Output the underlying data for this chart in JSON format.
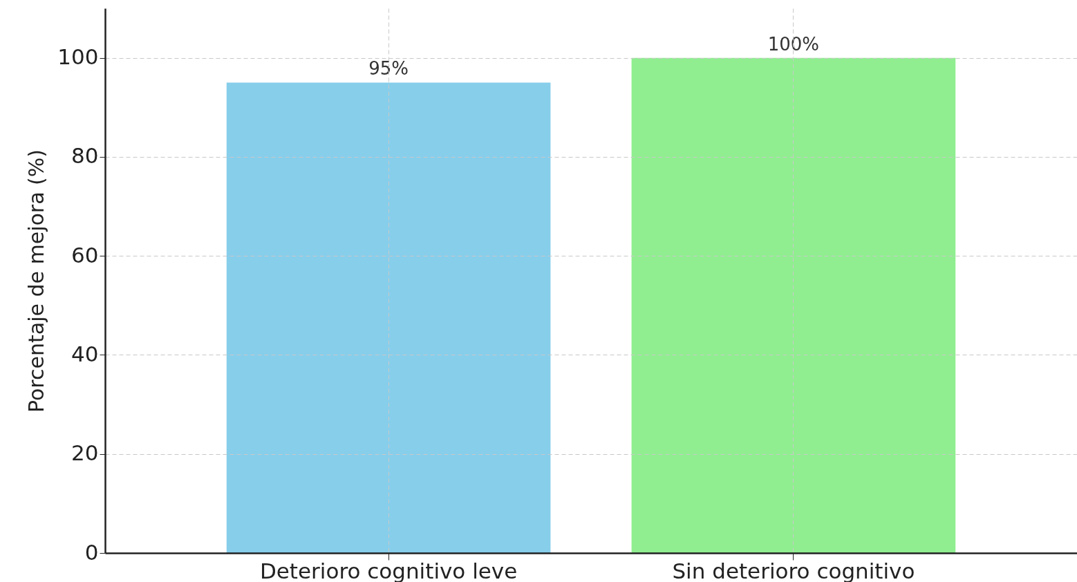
{
  "chart_data": {
    "type": "bar",
    "ylabel": "Porcentaje de mejora (%)",
    "categories": [
      "Deterioro cognitivo leve",
      "Sin deterioro cognitivo"
    ],
    "values": [
      95,
      100
    ],
    "colors": [
      "#87ceeb",
      "#90ee90"
    ],
    "value_labels": [
      "95%",
      "100%"
    ],
    "ylim": [
      0,
      110
    ],
    "yticks": [
      0,
      20,
      40,
      60,
      80,
      100
    ],
    "grid": true
  }
}
